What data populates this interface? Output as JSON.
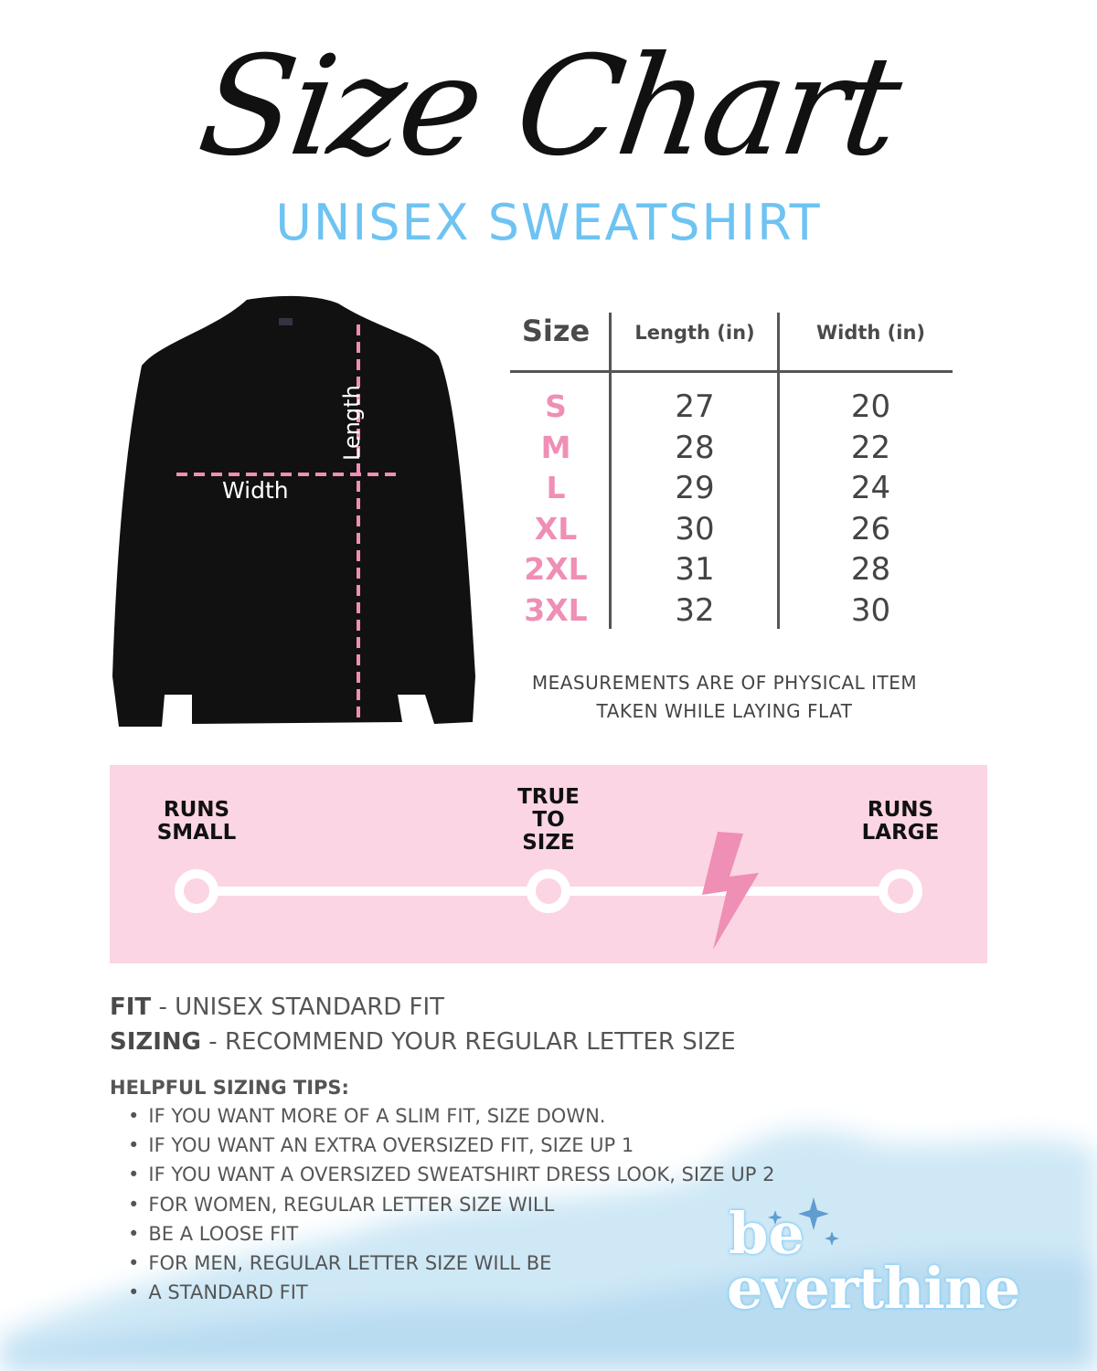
{
  "header": {
    "title": "Size Chart",
    "subtitle": "UNISEX SWEATSHIRT"
  },
  "diagram": {
    "length_label": "Length",
    "width_label": "Width",
    "line_color": "#ef8fb5"
  },
  "table": {
    "headers": [
      "Size",
      "Length (in)",
      "Width (in)"
    ],
    "rows": [
      {
        "size": "S",
        "length": "27",
        "width": "20"
      },
      {
        "size": "M",
        "length": "28",
        "width": "22"
      },
      {
        "size": "L",
        "length": "29",
        "width": "24"
      },
      {
        "size": "XL",
        "length": "30",
        "width": "26"
      },
      {
        "size": "2XL",
        "length": "31",
        "width": "28"
      },
      {
        "size": "3XL",
        "length": "32",
        "width": "30"
      }
    ],
    "note": [
      "MEASUREMENTS ARE OF PHYSICAL ITEM",
      "TAKEN WHILE LAYING FLAT"
    ]
  },
  "fit_scale": {
    "labels": [
      [
        "RUNS",
        "SMALL"
      ],
      [
        "TRUE",
        "TO",
        "SIZE"
      ],
      [
        "RUNS",
        "LARGE"
      ]
    ],
    "indicator": "lightning-bolt",
    "indicator_position": "between true to size and runs large",
    "colors": {
      "band": "#fbd5e3",
      "bolt": "#ef8fb5"
    }
  },
  "fit": {
    "label": "FIT",
    "value": "- UNISEX STANDARD FIT"
  },
  "sizing": {
    "label": "SIZING",
    "value": "- RECOMMEND YOUR REGULAR LETTER SIZE"
  },
  "tips": {
    "heading": "HELPFUL SIZING TIPS:",
    "items": [
      "IF YOU WANT MORE OF A SLIM FIT, SIZE DOWN.",
      "IF YOU WANT AN EXTRA OVERSIZED FIT, SIZE UP 1",
      "IF YOU WANT A OVERSIZED SWEATSHIRT DRESS LOOK, SIZE UP 2",
      "FOR WOMEN, REGULAR LETTER SIZE WILL",
      "BE A LOOSE FIT",
      "FOR MEN, REGULAR LETTER SIZE WILL BE",
      "A STANDARD FIT"
    ]
  },
  "logo": {
    "line1": "be",
    "line2": "everthine"
  }
}
